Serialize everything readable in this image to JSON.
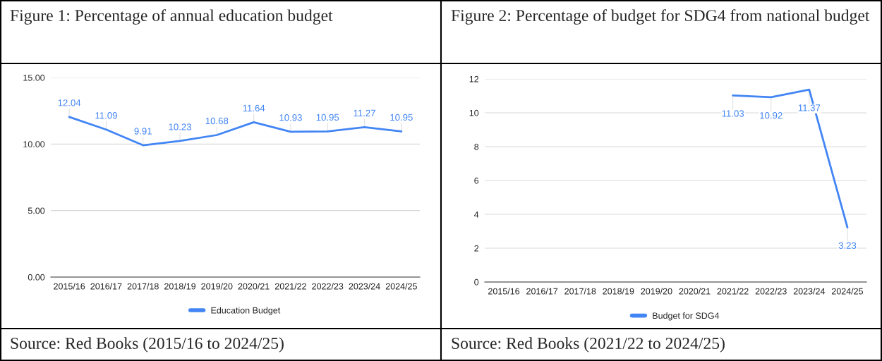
{
  "chart_data": [
    {
      "type": "line",
      "title": "Figure 1: Percentage of annual education budget",
      "categories": [
        "2015/16",
        "2016/17",
        "2017/18",
        "2018/19",
        "2019/20",
        "2020/21",
        "2021/22",
        "2022/23",
        "2023/24",
        "2024/25"
      ],
      "series": [
        {
          "name": "Education Budget",
          "color": "#4285f4",
          "values": [
            12.04,
            11.09,
            9.91,
            10.23,
            10.68,
            11.64,
            10.93,
            10.95,
            11.27,
            10.95
          ]
        }
      ],
      "ylim": [
        0,
        15
      ],
      "yticks": [
        {
          "value": 0,
          "label": "0.00"
        },
        {
          "value": 5,
          "label": "5.00"
        },
        {
          "value": 10,
          "label": "10.00"
        },
        {
          "value": 15,
          "label": "15.00"
        }
      ],
      "grid": "y",
      "legend": "bottom",
      "data_labels": true,
      "annotations": [
        "Source: Red Books (2015/16 to 2024/25)"
      ]
    },
    {
      "type": "line",
      "title": "Figure 2: Percentage of budget for SDG4 from national budget",
      "categories": [
        "2015/16",
        "2016/17",
        "2017/18",
        "2018/19",
        "2019/20",
        "2020/21",
        "2021/22",
        "2022/23",
        "2023/24",
        "2024/25"
      ],
      "series": [
        {
          "name": "Budget for SDG4",
          "color": "#4285f4",
          "values": [
            null,
            null,
            null,
            null,
            null,
            null,
            11.03,
            10.92,
            11.37,
            3.23
          ]
        }
      ],
      "ylim": [
        0,
        12
      ],
      "yticks": [
        0,
        2,
        4,
        6,
        8,
        10,
        12
      ],
      "grid": "y",
      "legend": "bottom",
      "data_labels": true,
      "annotations": [
        "Source: Red Books (2021/22 to 2024/25)"
      ]
    }
  ]
}
